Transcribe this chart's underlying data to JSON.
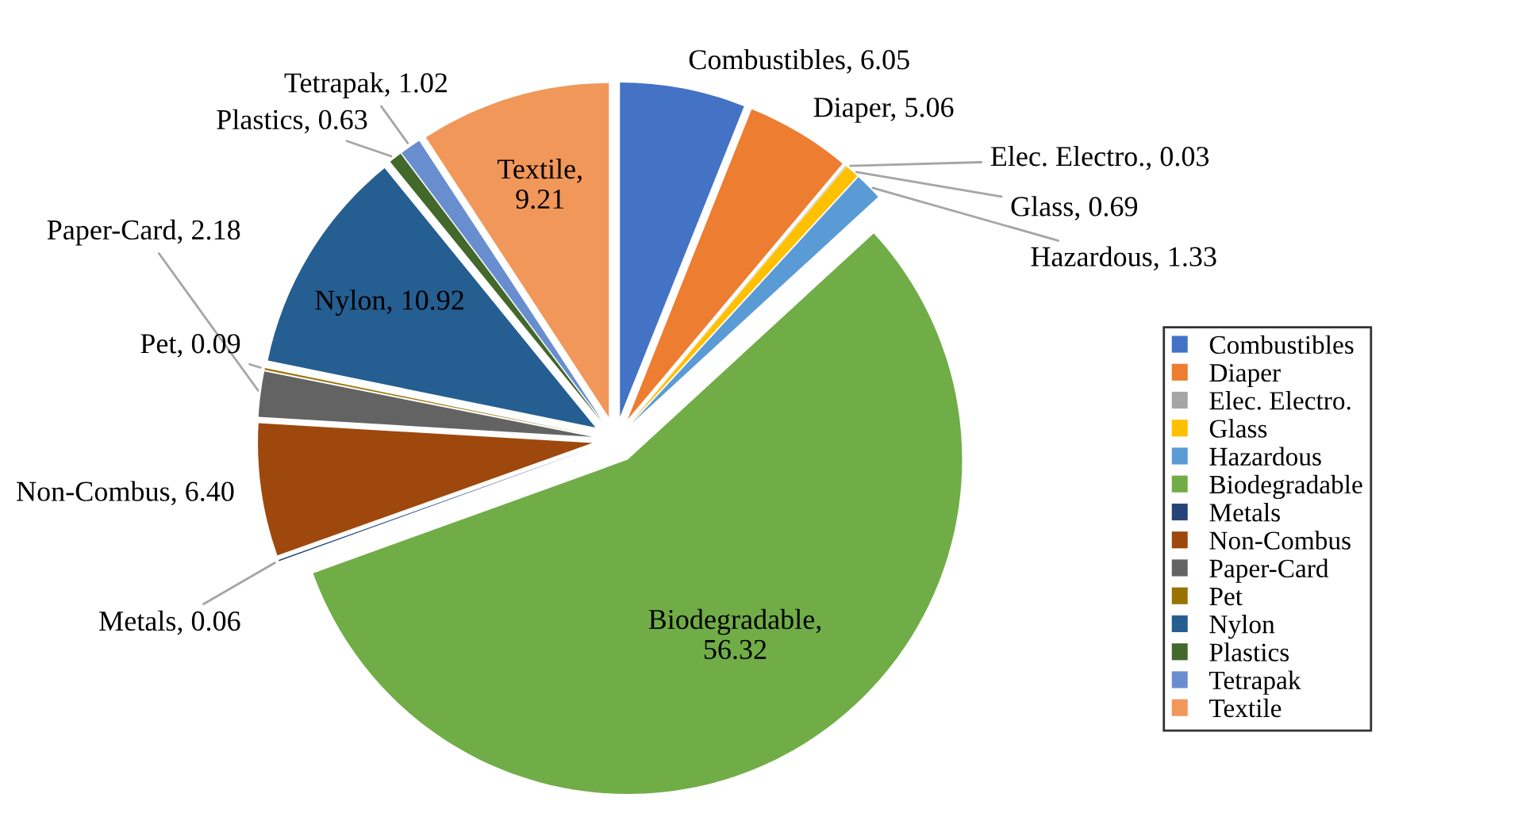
{
  "chart_data": {
    "type": "pie",
    "categories": [
      "Combustibles",
      "Diaper",
      "Elec. Electro.",
      "Glass",
      "Hazardous",
      "Biodegradable",
      "Metals",
      "Non-Combus",
      "Paper-Card",
      "Pet",
      "Nylon",
      "Plastics",
      "Tetrapak",
      "Textile"
    ],
    "values": [
      6.05,
      5.06,
      0.03,
      0.69,
      1.33,
      56.32,
      0.06,
      6.4,
      2.18,
      0.09,
      10.92,
      0.63,
      1.02,
      9.21
    ],
    "value_labels": [
      "Combustibles, 6.05",
      "Diaper, 5.06",
      "Elec. Electro., 0.03",
      "Glass, 0.69",
      "Hazardous, 1.33",
      "Biodegradable,\n56.32",
      "Metals, 0.06",
      "Non-Combus, 6.40",
      "Paper-Card, 2.18",
      "Pet, 0.09",
      "Nylon, 10.92",
      "Plastics, 0.63",
      "Tetrapak, 1.02",
      "Textile,\n9.21"
    ],
    "colors": [
      "#4472c4",
      "#ed7d31",
      "#a5a5a5",
      "#ffc000",
      "#5b9bd5",
      "#70ad47",
      "#264478",
      "#9e480e",
      "#636363",
      "#997300",
      "#255e91",
      "#43682b",
      "#698ed0",
      "#f1975a"
    ],
    "legend": "right"
  }
}
